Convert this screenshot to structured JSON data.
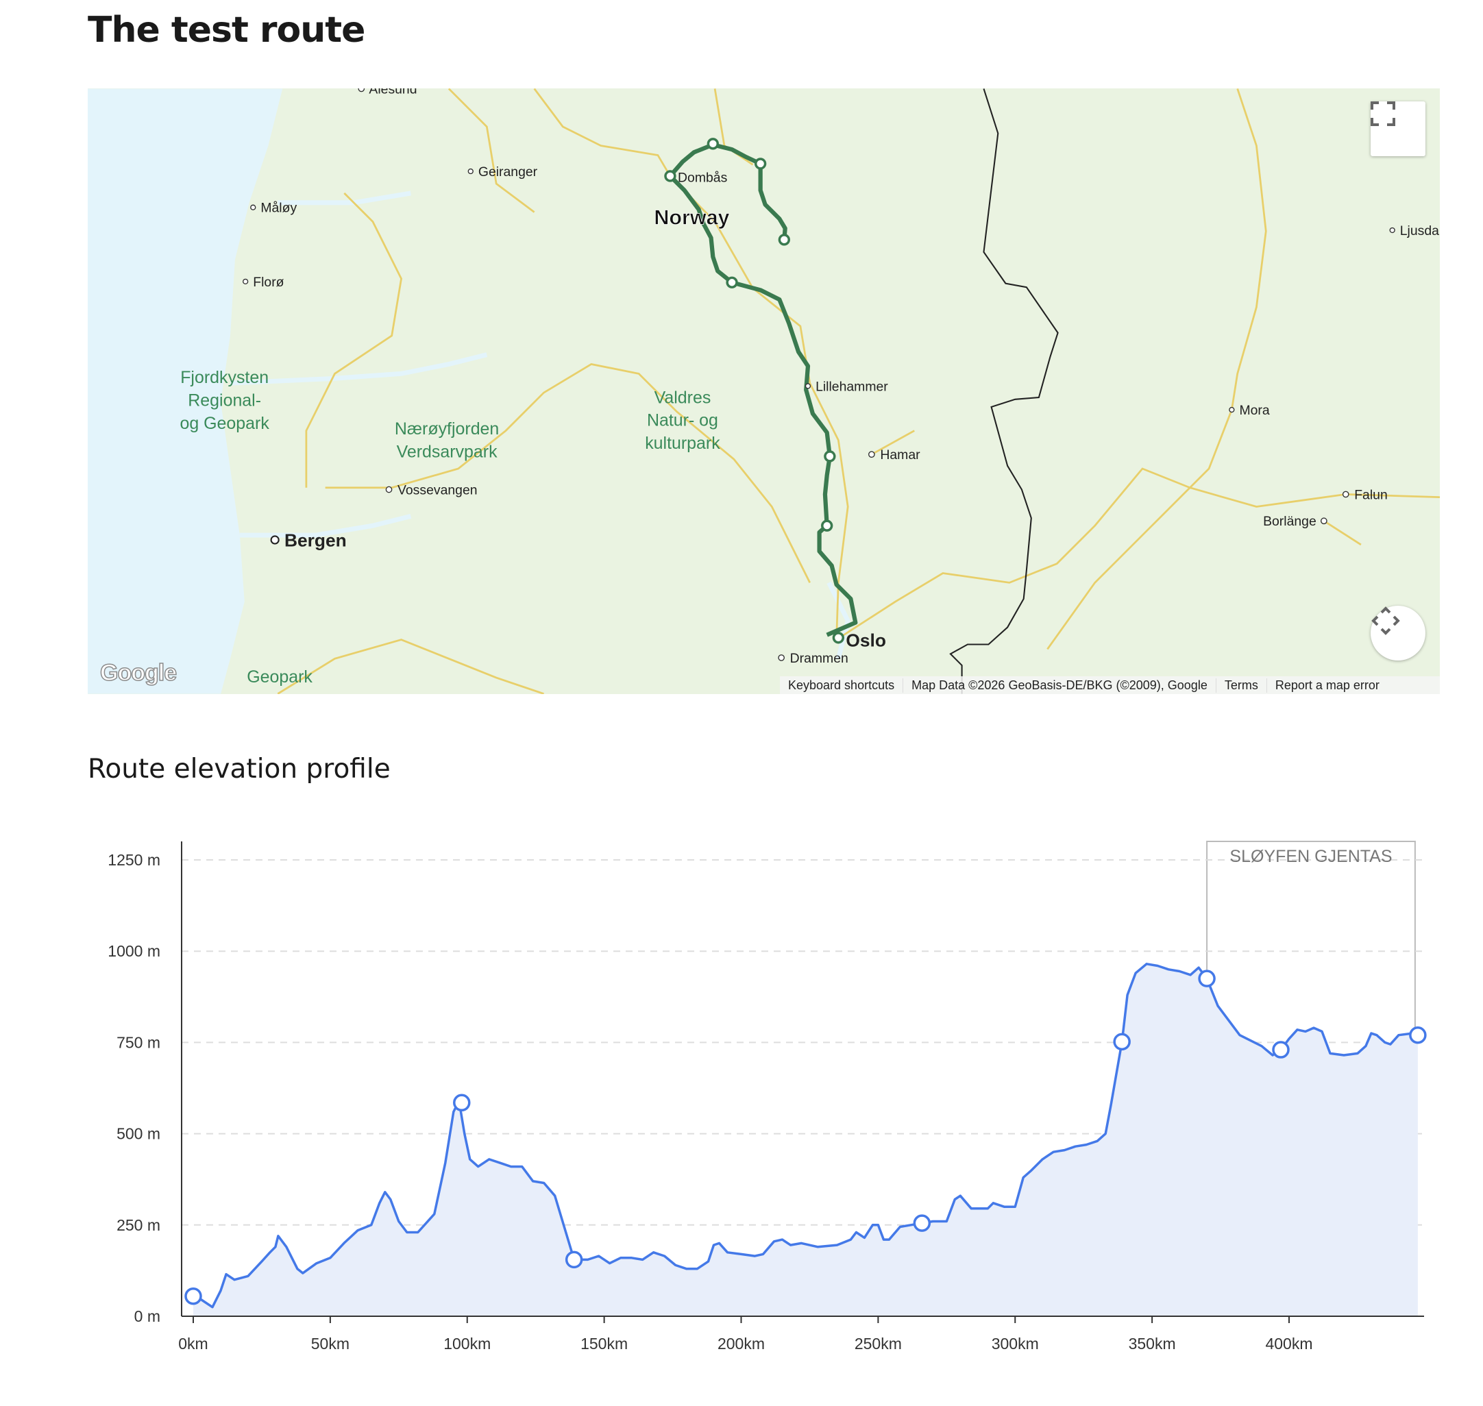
{
  "page": {
    "title": "The test route"
  },
  "map": {
    "country_label": "Norway",
    "cities": [
      {
        "name": "Ålesund"
      },
      {
        "name": "Geiranger"
      },
      {
        "name": "Måløy"
      },
      {
        "name": "Florø"
      },
      {
        "name": "Dombås"
      },
      {
        "name": "Ljusdal"
      },
      {
        "name": "Lillehammer"
      },
      {
        "name": "Hamar"
      },
      {
        "name": "Mora"
      },
      {
        "name": "Falun"
      },
      {
        "name": "Borlänge"
      },
      {
        "name": "Vossevangen"
      },
      {
        "name": "Bergen"
      },
      {
        "name": "Oslo"
      },
      {
        "name": "Drammen"
      }
    ],
    "parks": [
      {
        "lines": [
          "Fjordkysten",
          "Regional-",
          "og Geopark"
        ]
      },
      {
        "lines": [
          "Nærøyfjorden",
          "Verdsarvpark"
        ]
      },
      {
        "lines": [
          "Valdres",
          "Natur- og",
          "kulturpark"
        ]
      },
      {
        "lines": [
          "Geopark"
        ]
      }
    ],
    "logo": "Google",
    "attribution": {
      "keyboard_shortcuts": "Keyboard shortcuts",
      "map_data": "Map Data ©2026 GeoBasis-DE/BKG (©2009), Google",
      "terms": "Terms",
      "report": "Report a map error"
    },
    "controls": {
      "fullscreen_icon": "fullscreen-icon",
      "pan_icon": "move-arrows-icon"
    },
    "colors": {
      "route": "#3a7a4f",
      "land": "#eaf3e1",
      "water": "#e3f4fb",
      "roads": "#e8cf6a",
      "park_text": "#3a8a5a"
    }
  },
  "elevation": {
    "title": "Route elevation profile"
  },
  "chart_data": {
    "type": "area",
    "xlabel": "",
    "ylabel": "",
    "xlim": [
      0,
      450
    ],
    "ylim": [
      0,
      1300
    ],
    "grid": true,
    "x_ticks": [
      "0km",
      "50km",
      "100km",
      "150km",
      "200km",
      "250km",
      "300km",
      "350km",
      "400km"
    ],
    "y_ticks": [
      "0 m",
      "250 m",
      "500 m",
      "750 m",
      "1000 m",
      "1250 m"
    ],
    "series": [
      {
        "x": [
          0,
          3,
          7,
          10,
          12,
          15,
          20,
          25,
          28,
          30,
          31,
          34,
          38,
          40,
          45,
          50,
          55,
          60,
          65,
          68,
          70,
          72,
          75,
          78,
          82,
          88,
          92,
          95,
          97,
          99,
          101,
          104,
          108,
          112,
          116,
          120,
          124,
          128,
          132,
          136,
          139,
          144,
          148,
          152,
          156,
          160,
          164,
          168,
          172,
          176,
          180,
          184,
          188,
          190,
          192,
          195,
          200,
          205,
          208,
          212,
          215,
          218,
          222,
          228,
          235,
          240,
          242,
          245,
          248,
          250,
          252,
          254,
          258,
          262,
          266,
          270,
          275,
          278,
          280,
          284,
          290,
          292,
          296,
          300,
          303,
          306,
          310,
          314,
          318,
          322,
          326,
          330,
          333,
          335,
          339,
          341,
          344,
          348,
          352,
          356,
          360,
          364,
          367,
          370,
          374,
          378,
          382,
          386,
          390,
          394,
          397,
          400,
          403,
          406,
          409,
          412,
          415,
          420,
          425,
          428,
          430,
          432,
          435,
          437,
          440,
          445,
          447
        ],
        "y": [
          55,
          45,
          25,
          70,
          115,
          100,
          110,
          150,
          175,
          190,
          220,
          190,
          130,
          118,
          145,
          160,
          200,
          235,
          250,
          310,
          340,
          320,
          260,
          230,
          230,
          280,
          420,
          560,
          590,
          500,
          430,
          410,
          430,
          420,
          410,
          410,
          370,
          365,
          330,
          230,
          155,
          155,
          165,
          145,
          160,
          160,
          155,
          175,
          165,
          140,
          130,
          130,
          150,
          195,
          200,
          175,
          170,
          165,
          170,
          205,
          210,
          195,
          200,
          190,
          195,
          210,
          230,
          215,
          250,
          250,
          210,
          210,
          245,
          250,
          255,
          260,
          260,
          320,
          330,
          295,
          295,
          310,
          300,
          300,
          380,
          400,
          430,
          450,
          455,
          465,
          470,
          480,
          500,
          580,
          752,
          880,
          940,
          965,
          960,
          950,
          945,
          935,
          955,
          925,
          850,
          810,
          770,
          755,
          740,
          715,
          730,
          760,
          785,
          780,
          790,
          780,
          720,
          715,
          720,
          740,
          775,
          770,
          750,
          745,
          770,
          775,
          770
        ],
        "markers_x": [
          0,
          98,
          139,
          266,
          339,
          370,
          397,
          447
        ],
        "markers_y": [
          55,
          585,
          155,
          255,
          752,
          925,
          730,
          770
        ]
      }
    ],
    "annotation": {
      "label": "SLØYFEN GJENTAS",
      "x_start": 370,
      "x_end": 446
    },
    "colors": {
      "line": "#4479e8",
      "fill": "#e8eefa",
      "annotation_border": "#bbbbbb",
      "annotation_text": "#777777"
    }
  }
}
